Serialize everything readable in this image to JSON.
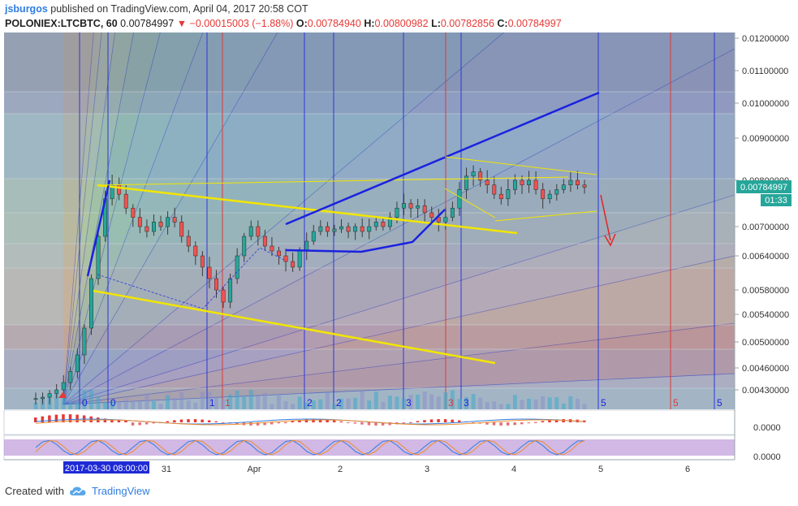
{
  "header": {
    "author": "jsburgos",
    "published_text": "published on TradingView.com, April 04, 2017 20:58 COT",
    "symbol": "POLONIEX:LTCBTC, 60",
    "last": "0.00784997",
    "change": "▼ −0.00015003 (−1.88%)",
    "o_label": "O:",
    "o_value": "0.00784940",
    "h_label": "H:",
    "h_value": "0.00800982",
    "l_label": "L:",
    "l_value": "0.00782856",
    "c_label": "C:",
    "c_value": "0.00784997"
  },
  "chart_data": {
    "type": "candlestick",
    "symbol": "POLONIEX:LTCBTC",
    "interval": "60",
    "last_price": 0.00784997,
    "countdown": "01:33",
    "y_axis_ticks": [
      "0.01200000",
      "0.01100000",
      "0.01000000",
      "0.00900000",
      "0.00800000",
      "0.00700000",
      "0.00640000",
      "0.00580000",
      "0.00540000",
      "0.00500000",
      "0.00460000",
      "0.00430000"
    ],
    "y_axis_values": [
      0.012,
      0.011,
      0.01,
      0.009,
      0.008,
      0.007,
      0.0064,
      0.0058,
      0.0054,
      0.005,
      0.0046,
      0.0043
    ],
    "x_axis_ticks": [
      "31",
      "Apr",
      "2",
      "3",
      "4",
      "5",
      "6"
    ],
    "crosshair_label": "2017-03-30 08:00:00",
    "cycle_labels": [
      "0",
      "0",
      "1",
      "1",
      "2",
      "2",
      "3",
      "3",
      "3",
      "5",
      "5",
      "5"
    ],
    "macd_tick": "0.0000",
    "stoch_tick": "0.0000",
    "colors": {
      "up": "#26a69a",
      "down": "#ef5350",
      "trend": "#1a22e0",
      "wedge": "#f2e600",
      "arrow": "#e52222",
      "price_tag": "#26a69a",
      "accent": "#2f7de1"
    },
    "series": [
      {
        "name": "LTCBTC 60m",
        "close": [
          0.00418,
          0.0042,
          0.00425,
          0.0043,
          0.0044,
          0.00455,
          0.0048,
          0.0052,
          0.006,
          0.0068,
          0.0076,
          0.0079,
          0.0077,
          0.0074,
          0.0072,
          0.007,
          0.0069,
          0.0071,
          0.007,
          0.0072,
          0.0071,
          0.0068,
          0.0066,
          0.0064,
          0.0062,
          0.006,
          0.0058,
          0.0056,
          0.006,
          0.0064,
          0.0068,
          0.007,
          0.0068,
          0.0066,
          0.0065,
          0.0064,
          0.0063,
          0.0062,
          0.0065,
          0.0067,
          0.0069,
          0.007,
          0.0069,
          0.00695,
          0.007,
          0.0069,
          0.007,
          0.0069,
          0.007,
          0.0071,
          0.007,
          0.0072,
          0.0074,
          0.0075,
          0.0074,
          0.00745,
          0.0073,
          0.0072,
          0.0071,
          0.0072,
          0.0074,
          0.0078,
          0.0081,
          0.0082,
          0.008,
          0.0079,
          0.0077,
          0.0076,
          0.0078,
          0.008,
          0.0079,
          0.008,
          0.0078,
          0.0076,
          0.0077,
          0.0078,
          0.0079,
          0.008,
          0.0079,
          0.00785
        ]
      }
    ]
  },
  "footer": {
    "created_with": "Created with",
    "brand": "TradingView"
  }
}
